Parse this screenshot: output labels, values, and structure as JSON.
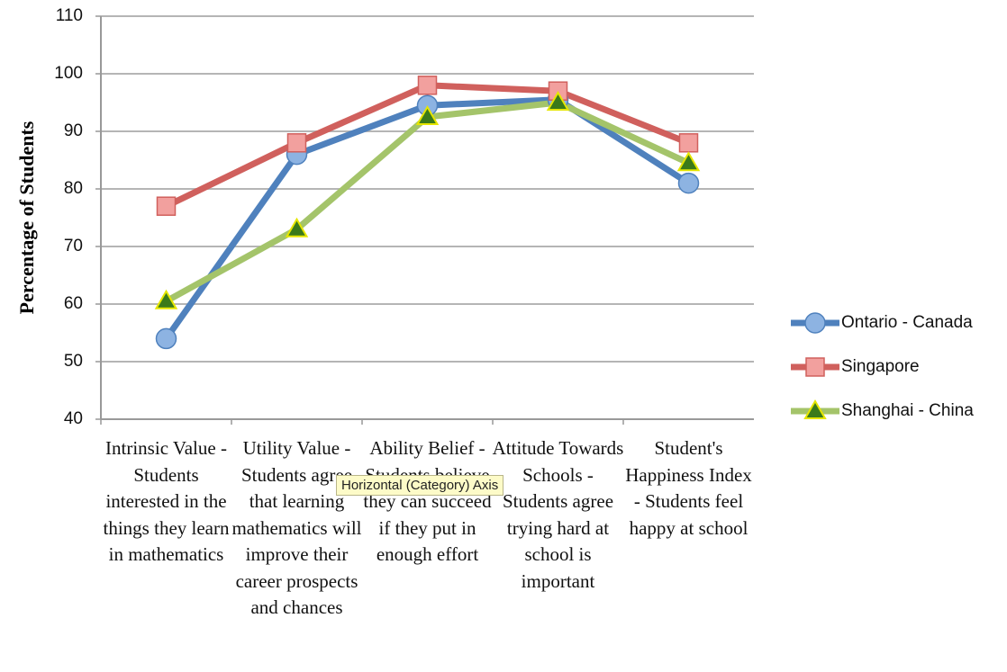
{
  "chart_data": {
    "type": "line",
    "y_label": "Percentage of Students",
    "tooltip": "Horizontal (Category) Axis",
    "categories": [
      "Intrinsic Value - Students interested in the things they learn in mathematics",
      "Utility Value - Students agree that learning mathematics will improve their career prospects and chances",
      "Ability Belief - Students believe they can succeed if they put in enough effort",
      "Attitude Towards Schools - Students agree trying hard at school is important",
      "Student's Happiness Index - Students feel happy at school"
    ],
    "series": [
      {
        "name": "Ontario - Canada",
        "color": "#4f81bd",
        "marker": "circle",
        "marker_fill": "#8db3e2",
        "values": [
          54,
          86,
          94.5,
          95.5,
          81
        ]
      },
      {
        "name": "Singapore",
        "color": "#d0605d",
        "marker": "square",
        "marker_fill": "#f2a09e",
        "values": [
          77,
          88,
          98,
          97,
          88
        ]
      },
      {
        "name": "Shanghai - China",
        "color": "#a4c46a",
        "marker": "triangle",
        "marker_fill": "#3a7a1a",
        "values": [
          60.5,
          73,
          92.5,
          95,
          84.5
        ]
      }
    ],
    "ylim": [
      40,
      110
    ],
    "yticks": [
      40,
      50,
      60,
      70,
      80,
      90,
      100,
      110
    ],
    "grid": true,
    "legend": "right"
  }
}
